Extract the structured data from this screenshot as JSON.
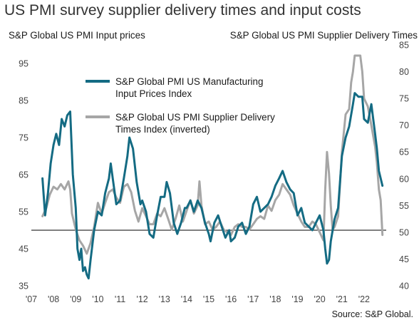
{
  "chart_data": {
    "type": "line",
    "title": "US PMI survey supplier delivery times and input costs",
    "source": "Source: S&P Global.",
    "legend_position": "top-left",
    "grid": false,
    "x_axis": {
      "range": [
        2007.0,
        2023.0
      ],
      "ticks": [
        2007,
        2008,
        2009,
        2010,
        2011,
        2012,
        2013,
        2014,
        2015,
        2016,
        2017,
        2018,
        2019,
        2020,
        2021,
        2022
      ],
      "tick_labels": [
        "'07",
        "'08",
        "'09",
        "'10",
        "'11",
        "'12",
        "'13",
        "'14",
        "'15",
        "'16",
        "'17",
        "'18",
        "'19",
        "'20",
        "'21",
        "'22"
      ]
    },
    "left_axis": {
      "label": "S&P Global US PMI Input prices",
      "range": [
        35,
        100
      ],
      "ticks": [
        35,
        45,
        55,
        65,
        75,
        85,
        95
      ],
      "reference_line": 50
    },
    "right_axis": {
      "label": "S&P Global US PMI Supplier Delivery Times",
      "range": [
        40,
        85
      ],
      "inverted_series": true,
      "ticks": [
        40,
        45,
        50,
        55,
        60,
        65,
        70,
        75,
        80,
        85
      ]
    },
    "series": [
      {
        "name": "S&P Global PMI US Manufacturing Input Prices Index",
        "legend_lines": [
          "S&P Global PMI US Manufacturing",
          "Input Prices Index"
        ],
        "axis": "left",
        "color": "#146b83",
        "points": [
          [
            2007.5,
            64
          ],
          [
            2007.62,
            54
          ],
          [
            2007.75,
            60
          ],
          [
            2007.87,
            68
          ],
          [
            2008.0,
            73
          ],
          [
            2008.12,
            76
          ],
          [
            2008.25,
            73
          ],
          [
            2008.37,
            80
          ],
          [
            2008.5,
            78
          ],
          [
            2008.62,
            81
          ],
          [
            2008.75,
            82
          ],
          [
            2008.87,
            65
          ],
          [
            2009.0,
            56
          ],
          [
            2009.08,
            45
          ],
          [
            2009.17,
            42
          ],
          [
            2009.25,
            45
          ],
          [
            2009.33,
            39
          ],
          [
            2009.42,
            40
          ],
          [
            2009.5,
            38
          ],
          [
            2009.58,
            37
          ],
          [
            2009.67,
            42
          ],
          [
            2009.75,
            46
          ],
          [
            2009.83,
            50
          ],
          [
            2010.0,
            55
          ],
          [
            2010.17,
            54
          ],
          [
            2010.33,
            60
          ],
          [
            2010.5,
            64
          ],
          [
            2010.58,
            68
          ],
          [
            2010.67,
            64
          ],
          [
            2010.83,
            57
          ],
          [
            2011.0,
            58
          ],
          [
            2011.17,
            64
          ],
          [
            2011.33,
            70
          ],
          [
            2011.42,
            75
          ],
          [
            2011.58,
            72
          ],
          [
            2011.75,
            63
          ],
          [
            2011.92,
            57
          ],
          [
            2012.0,
            58
          ],
          [
            2012.17,
            55
          ],
          [
            2012.33,
            49
          ],
          [
            2012.5,
            48
          ],
          [
            2012.67,
            54
          ],
          [
            2012.83,
            59
          ],
          [
            2013.0,
            59
          ],
          [
            2013.1,
            63
          ],
          [
            2013.25,
            60
          ],
          [
            2013.42,
            52
          ],
          [
            2013.58,
            49
          ],
          [
            2013.75,
            52
          ],
          [
            2013.92,
            56
          ],
          [
            2014.0,
            56
          ],
          [
            2014.17,
            58
          ],
          [
            2014.33,
            55
          ],
          [
            2014.5,
            58
          ],
          [
            2014.67,
            56
          ],
          [
            2014.83,
            52
          ],
          [
            2015.0,
            49
          ],
          [
            2015.08,
            47
          ],
          [
            2015.25,
            52
          ],
          [
            2015.42,
            54
          ],
          [
            2015.58,
            51
          ],
          [
            2015.75,
            48
          ],
          [
            2015.92,
            50
          ],
          [
            2016.0,
            47
          ],
          [
            2016.17,
            48
          ],
          [
            2016.33,
            51
          ],
          [
            2016.5,
            52
          ],
          [
            2016.67,
            49
          ],
          [
            2016.83,
            51
          ],
          [
            2017.0,
            57
          ],
          [
            2017.17,
            59
          ],
          [
            2017.33,
            55
          ],
          [
            2017.5,
            56
          ],
          [
            2017.67,
            57
          ],
          [
            2017.83,
            59
          ],
          [
            2018.0,
            62
          ],
          [
            2018.17,
            64
          ],
          [
            2018.33,
            66
          ],
          [
            2018.5,
            63
          ],
          [
            2018.67,
            61
          ],
          [
            2018.83,
            60
          ],
          [
            2019.0,
            54
          ],
          [
            2019.17,
            56
          ],
          [
            2019.33,
            52
          ],
          [
            2019.5,
            51
          ],
          [
            2019.67,
            50
          ],
          [
            2019.83,
            52
          ],
          [
            2020.0,
            54
          ],
          [
            2020.17,
            50
          ],
          [
            2020.25,
            45
          ],
          [
            2020.33,
            41
          ],
          [
            2020.42,
            42
          ],
          [
            2020.5,
            47
          ],
          [
            2020.67,
            53
          ],
          [
            2020.83,
            56
          ],
          [
            2021.0,
            70
          ],
          [
            2021.17,
            75
          ],
          [
            2021.33,
            78
          ],
          [
            2021.5,
            84
          ],
          [
            2021.58,
            87
          ],
          [
            2021.75,
            86
          ],
          [
            2021.92,
            86
          ],
          [
            2022.0,
            80
          ],
          [
            2022.17,
            79
          ],
          [
            2022.33,
            84
          ],
          [
            2022.5,
            76
          ],
          [
            2022.58,
            72
          ],
          [
            2022.67,
            66
          ],
          [
            2022.75,
            64
          ],
          [
            2022.83,
            62
          ]
        ]
      },
      {
        "name": "S&P Global US PMI Supplier Delivery Times Index (inverted)",
        "legend_lines": [
          "S&P Global US PMI Supplier Delivery",
          "Times Index (inverted)"
        ],
        "axis": "right",
        "color": "#a6a6a6",
        "points": [
          [
            2007.5,
            53.0
          ],
          [
            2007.67,
            54.5
          ],
          [
            2007.83,
            57.0
          ],
          [
            2008.0,
            58.5
          ],
          [
            2008.17,
            58.0
          ],
          [
            2008.33,
            59.0
          ],
          [
            2008.5,
            58.0
          ],
          [
            2008.67,
            59.5
          ],
          [
            2008.75,
            58.0
          ],
          [
            2008.83,
            53.5
          ],
          [
            2009.0,
            50.5
          ],
          [
            2009.17,
            48.5
          ],
          [
            2009.33,
            47.5
          ],
          [
            2009.5,
            46.0
          ],
          [
            2009.67,
            48.0
          ],
          [
            2009.83,
            51.0
          ],
          [
            2010.0,
            55.5
          ],
          [
            2010.17,
            53.5
          ],
          [
            2010.33,
            55.5
          ],
          [
            2010.5,
            57.5
          ],
          [
            2010.67,
            58.0
          ],
          [
            2010.83,
            56.5
          ],
          [
            2011.0,
            55.5
          ],
          [
            2011.17,
            58.5
          ],
          [
            2011.33,
            59.0
          ],
          [
            2011.5,
            57.5
          ],
          [
            2011.67,
            54.0
          ],
          [
            2011.83,
            52.0
          ],
          [
            2012.0,
            54.5
          ],
          [
            2012.17,
            53.0
          ],
          [
            2012.33,
            51.5
          ],
          [
            2012.5,
            51.5
          ],
          [
            2012.67,
            53.5
          ],
          [
            2012.83,
            53.0
          ],
          [
            2013.0,
            54.5
          ],
          [
            2013.17,
            52.5
          ],
          [
            2013.33,
            50.5
          ],
          [
            2013.5,
            52.5
          ],
          [
            2013.67,
            55.0
          ],
          [
            2013.83,
            52.0
          ],
          [
            2014.0,
            54.0
          ],
          [
            2014.17,
            56.0
          ],
          [
            2014.33,
            53.5
          ],
          [
            2014.5,
            55.0
          ],
          [
            2014.58,
            59.5
          ],
          [
            2014.67,
            55.0
          ],
          [
            2014.83,
            51.5
          ],
          [
            2015.0,
            52.0
          ],
          [
            2015.17,
            50.5
          ],
          [
            2015.33,
            51.0
          ],
          [
            2015.5,
            52.0
          ],
          [
            2015.67,
            50.5
          ],
          [
            2015.83,
            50.0
          ],
          [
            2016.0,
            49.5
          ],
          [
            2016.17,
            51.0
          ],
          [
            2016.33,
            51.5
          ],
          [
            2016.5,
            51.0
          ],
          [
            2016.67,
            51.0
          ],
          [
            2016.83,
            50.5
          ],
          [
            2017.0,
            51.5
          ],
          [
            2017.17,
            52.5
          ],
          [
            2017.33,
            53.0
          ],
          [
            2017.5,
            52.5
          ],
          [
            2017.67,
            55.0
          ],
          [
            2017.83,
            54.0
          ],
          [
            2018.0,
            56.0
          ],
          [
            2018.17,
            57.0
          ],
          [
            2018.33,
            59.0
          ],
          [
            2018.5,
            58.0
          ],
          [
            2018.67,
            57.0
          ],
          [
            2018.83,
            55.0
          ],
          [
            2019.0,
            53.5
          ],
          [
            2019.17,
            52.0
          ],
          [
            2019.33,
            51.0
          ],
          [
            2019.5,
            51.0
          ],
          [
            2019.67,
            52.0
          ],
          [
            2019.83,
            51.5
          ],
          [
            2020.0,
            50.0
          ],
          [
            2020.17,
            48.5
          ],
          [
            2020.25,
            58.0
          ],
          [
            2020.33,
            65.0
          ],
          [
            2020.42,
            61.0
          ],
          [
            2020.5,
            55.0
          ],
          [
            2020.58,
            50.5
          ],
          [
            2020.67,
            51.0
          ],
          [
            2020.83,
            53.0
          ],
          [
            2021.0,
            65.0
          ],
          [
            2021.17,
            72.0
          ],
          [
            2021.33,
            73.0
          ],
          [
            2021.42,
            78.0
          ],
          [
            2021.5,
            80.0
          ],
          [
            2021.58,
            83.0
          ],
          [
            2021.67,
            83.0
          ],
          [
            2021.83,
            83.0
          ],
          [
            2021.92,
            80.0
          ],
          [
            2022.0,
            75.0
          ],
          [
            2022.17,
            73.5
          ],
          [
            2022.33,
            70.0
          ],
          [
            2022.5,
            66.0
          ],
          [
            2022.58,
            63.0
          ],
          [
            2022.67,
            58.0
          ],
          [
            2022.75,
            56.0
          ],
          [
            2022.83,
            49.5
          ]
        ]
      }
    ]
  }
}
